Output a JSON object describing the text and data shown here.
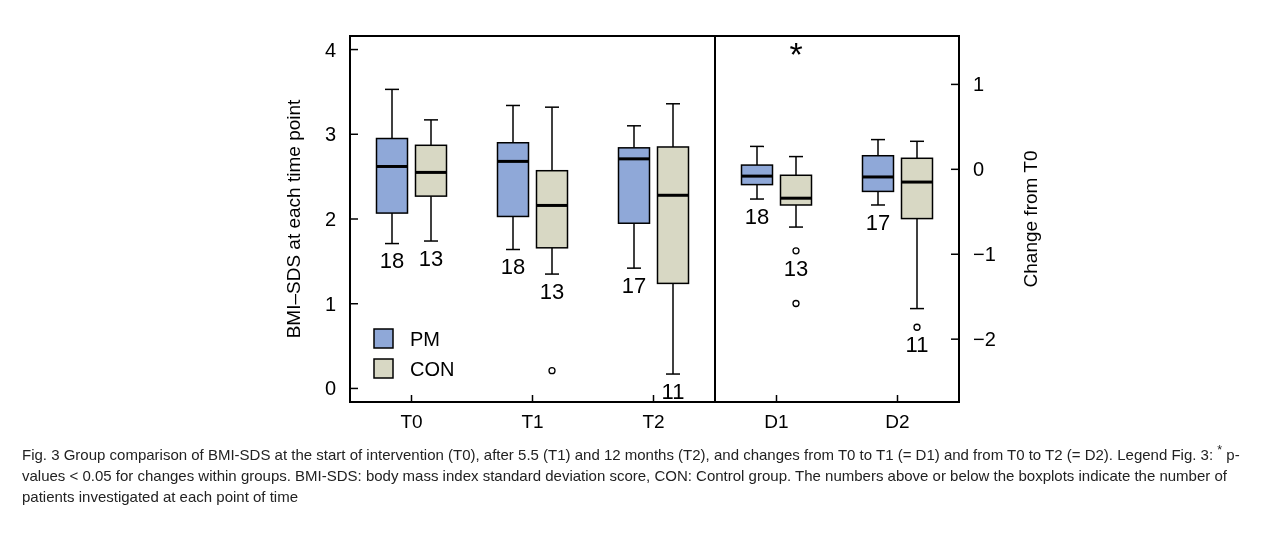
{
  "chart_data": [
    {
      "type": "box",
      "categories": [
        "T0",
        "T1",
        "T2"
      ],
      "ylabel": "BMI–SDS at each time point",
      "ylim": [
        -0.16,
        4.16
      ],
      "yticks": [
        0,
        1,
        2,
        3,
        4
      ],
      "legend": "bottom left",
      "series": [
        {
          "name": "PM",
          "color": "#8fa8d8",
          "boxes": [
            {
              "low": 1.71,
              "q1": 2.07,
              "median": 2.62,
              "q3": 2.95,
              "high": 3.53
            },
            {
              "low": 1.64,
              "q1": 2.03,
              "median": 2.68,
              "q3": 2.9,
              "high": 3.34
            },
            {
              "low": 1.42,
              "q1": 1.95,
              "median": 2.71,
              "q3": 2.84,
              "high": 3.1
            }
          ]
        },
        {
          "name": "CON",
          "color": "#d8d8c4",
          "boxes": [
            {
              "low": 1.74,
              "q1": 2.27,
              "median": 2.55,
              "q3": 2.87,
              "high": 3.17
            },
            {
              "low": 1.35,
              "q1": 1.66,
              "median": 2.16,
              "q3": 2.57,
              "high": 3.32,
              "outliers": [
                0.21
              ]
            },
            {
              "low": 0.17,
              "q1": 1.24,
              "median": 2.28,
              "q3": 2.85,
              "high": 3.36
            }
          ]
        }
      ],
      "annotations": [
        "18",
        "13",
        "18",
        "13",
        "17",
        "11",
        "Fig. 3 Group comparison of BMI-SDS at the start of intervention (T0), after 5.5 (T1) and 12 months (T2), and changes from T0 to T1 (= D1) and from T0 to T2 (= D2). Legend Fig. 3: $^{*}$ p-values < 0.05 for changes within groups. BMI-SDS: body mass index standard deviation score, CON: Control group. The numbers above or below the boxplots indicate the number of patients investigated at each point of time"
      ]
    },
    {
      "type": "box",
      "categories": [
        "D1",
        "D2"
      ],
      "y2label": "Change from T0",
      "y2lim": [
        -2.74,
        1.57
      ],
      "y2ticks": [
        -2,
        -1,
        0,
        1
      ],
      "series": [
        {
          "color": "#8fa8d8",
          "axis": "y2",
          "boxes": [
            {
              "low": -0.35,
              "q1": -0.18,
              "median": -0.08,
              "q3": 0.05,
              "high": 0.27
            },
            {
              "low": -0.42,
              "q1": -0.26,
              "median": -0.09,
              "q3": 0.16,
              "high": 0.35
            }
          ]
        },
        {
          "color": "#d8d8c4",
          "axis": "y2",
          "boxes": [
            {
              "low": -0.68,
              "q1": -0.42,
              "median": -0.34,
              "q3": -0.07,
              "high": 0.15,
              "outliers": [
                -0.96,
                -1.58
              ]
            },
            {
              "low": -1.64,
              "q1": -0.58,
              "median": -0.15,
              "q3": 0.13,
              "high": 0.33,
              "outliers": [
                -1.86
              ]
            }
          ]
        }
      ],
      "annotations": [
        "18",
        "13",
        "17",
        "11",
        "*"
      ]
    }
  ]
}
